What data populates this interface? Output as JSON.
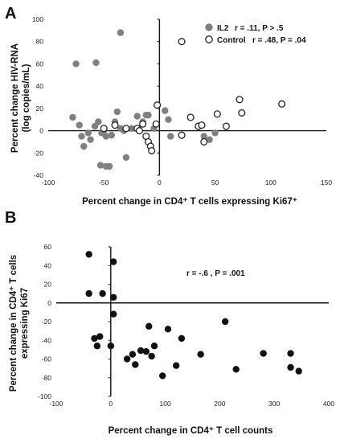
{
  "chart_data": [
    {
      "panel_label": "A",
      "type": "scatter",
      "xlabel": "Percent change in CD4⁺ T cells expressing Ki67⁺",
      "ylabel_lines": [
        "Percent change HIV-RNA",
        "(log copies/mL)"
      ],
      "xlim": [
        -100,
        150
      ],
      "ylim": [
        -40,
        100
      ],
      "xticks": [
        -100,
        -50,
        0,
        50,
        100,
        150
      ],
      "yticks": [
        -40,
        -20,
        0,
        20,
        40,
        60,
        80,
        100
      ],
      "xtick_labels": [
        "-100",
        "-50",
        "0",
        "50",
        "100",
        "150"
      ],
      "ytick_labels": [
        "-40",
        "-20",
        "0",
        "20",
        "40",
        "60",
        "80",
        "100"
      ],
      "legend_position": "top-right",
      "series": [
        {
          "name": "IL2",
          "stat": "r = .11, P > .5",
          "marker": "filled",
          "color": "#808080",
          "points": [
            [
              -75,
              60
            ],
            [
              -57,
              61
            ],
            [
              -35,
              88
            ],
            [
              -78,
              12
            ],
            [
              -72,
              5
            ],
            [
              -70,
              -5
            ],
            [
              -68,
              -14
            ],
            [
              -64,
              -2
            ],
            [
              -62,
              -8
            ],
            [
              -58,
              4
            ],
            [
              -55,
              8
            ],
            [
              -52,
              -2
            ],
            [
              -50,
              0
            ],
            [
              -48,
              -5
            ],
            [
              -53,
              -31
            ],
            [
              -48,
              -32
            ],
            [
              -45,
              -32
            ],
            [
              -43,
              -4
            ],
            [
              -40,
              8
            ],
            [
              -38,
              17
            ],
            [
              -35,
              2
            ],
            [
              -32,
              0
            ],
            [
              -30,
              -24
            ],
            [
              -25,
              2
            ],
            [
              -20,
              13
            ],
            [
              -15,
              8
            ],
            [
              -12,
              14
            ],
            [
              -10,
              14
            ],
            [
              -5,
              2
            ],
            [
              5,
              18
            ],
            [
              8,
              10
            ],
            [
              10,
              -5
            ],
            [
              40,
              -5
            ],
            [
              45,
              -8
            ],
            [
              50,
              -2
            ]
          ]
        },
        {
          "name": "Control",
          "stat": "r = .48, P = .04",
          "marker": "open",
          "color": "#222222",
          "points": [
            [
              -50,
              2
            ],
            [
              -40,
              5
            ],
            [
              -30,
              2
            ],
            [
              -20,
              2
            ],
            [
              -18,
              0
            ],
            [
              -15,
              6
            ],
            [
              -12,
              -5
            ],
            [
              -10,
              -10
            ],
            [
              -8,
              -14
            ],
            [
              -7,
              -18
            ],
            [
              -3,
              6
            ],
            [
              -2,
              23
            ],
            [
              20,
              80
            ],
            [
              20,
              -4
            ],
            [
              28,
              12
            ],
            [
              35,
              4
            ],
            [
              38,
              5
            ],
            [
              40,
              -10
            ],
            [
              52,
              15
            ],
            [
              60,
              4
            ],
            [
              72,
              28
            ],
            [
              74,
              16
            ],
            [
              110,
              24
            ]
          ]
        }
      ]
    },
    {
      "panel_label": "B",
      "type": "scatter",
      "xlabel": "Percent change in CD4⁺ T cell counts",
      "ylabel_lines": [
        "Percent change in CD4⁺ T cells",
        "expressing Ki67"
      ],
      "annotation": "r = -.6 , P = .001",
      "xlim": [
        -100,
        400
      ],
      "ylim": [
        -100,
        60
      ],
      "xticks": [
        -100,
        0,
        100,
        200,
        300,
        400
      ],
      "yticks": [
        -100,
        -80,
        -60,
        -40,
        -20,
        0,
        20,
        40,
        60
      ],
      "xtick_labels": [
        "-100",
        "0",
        "100",
        "200",
        "300",
        "400"
      ],
      "ytick_labels": [
        "-100",
        "-80",
        "-60",
        "-40",
        "-20",
        "0",
        "20",
        "40",
        "60"
      ],
      "series": [
        {
          "marker": "filled",
          "color": "#111111",
          "points": [
            [
              -40,
              52
            ],
            [
              -40,
              10
            ],
            [
              -15,
              10
            ],
            [
              5,
              44
            ],
            [
              5,
              6
            ],
            [
              5,
              -12
            ],
            [
              0,
              -46
            ],
            [
              -30,
              -38
            ],
            [
              -25,
              -46
            ],
            [
              -20,
              -36
            ],
            [
              30,
              -60
            ],
            [
              40,
              -55
            ],
            [
              45,
              -66
            ],
            [
              55,
              -51
            ],
            [
              65,
              -52
            ],
            [
              70,
              -25
            ],
            [
              75,
              -57
            ],
            [
              80,
              -46
            ],
            [
              95,
              -78
            ],
            [
              105,
              -28
            ],
            [
              120,
              -67
            ],
            [
              130,
              -38
            ],
            [
              165,
              -55
            ],
            [
              210,
              -20
            ],
            [
              230,
              -71
            ],
            [
              280,
              -54
            ],
            [
              330,
              -54
            ],
            [
              330,
              -69
            ],
            [
              345,
              -73
            ]
          ]
        }
      ]
    }
  ]
}
